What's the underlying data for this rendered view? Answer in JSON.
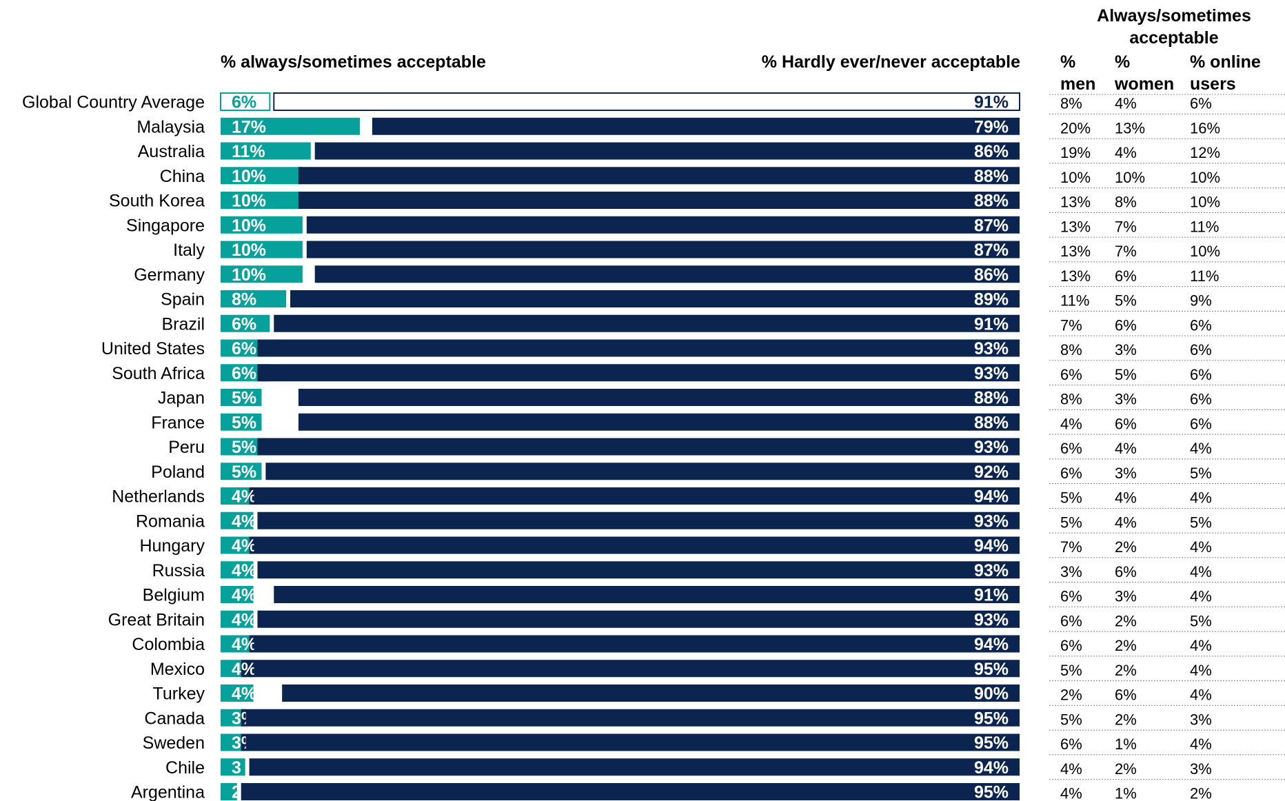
{
  "colors": {
    "acceptable": "#07a19b",
    "hardly_never": "#0c2550",
    "global_outline": "#0c2550"
  },
  "chart_data": {
    "type": "bar",
    "headers": {
      "acceptable": "% always/sometimes acceptable",
      "hardly_never": "% Hardly ever/never acceptable",
      "table_title": [
        "Always/sometimes",
        "acceptable"
      ],
      "columns": [
        [
          "%",
          "men"
        ],
        [
          "%",
          "women"
        ],
        [
          "% online",
          "users"
        ]
      ]
    },
    "categories": [
      "Global Country Average",
      "Malaysia",
      "Australia",
      "China",
      "South Korea",
      "Singapore",
      "Italy",
      "Germany",
      "Spain",
      "Brazil",
      "United States",
      "South Africa",
      "Japan",
      "France",
      "Peru",
      "Poland",
      "Netherlands",
      "Romania",
      "Hungary",
      "Russia",
      "Belgium",
      "Great Britain",
      "Colombia",
      "Mexico",
      "Turkey",
      "Canada",
      "Sweden",
      "Chile",
      "Argentina"
    ],
    "series": [
      {
        "name": "% always/sometimes acceptable",
        "values": [
          6,
          17,
          11,
          10,
          10,
          10,
          10,
          10,
          8,
          6,
          6,
          6,
          5,
          5,
          5,
          5,
          4,
          4,
          4,
          4,
          4,
          4,
          4,
          4,
          4,
          3,
          3,
          3,
          2
        ],
        "labels": [
          "6%",
          "17%",
          "11%",
          "10%",
          "10%",
          "10%",
          "10%",
          "10%",
          "8%",
          "6%",
          "6%",
          "6%",
          "5%",
          "5%",
          "5%",
          "5%",
          "4%",
          "4%",
          "4%",
          "4%",
          "4%",
          "4%",
          "4%",
          "4%",
          "4%",
          "3%",
          "3%",
          "3",
          "2"
        ]
      },
      {
        "name": "% Hardly ever/never acceptable",
        "values": [
          91,
          79,
          86,
          88,
          88,
          87,
          87,
          86,
          89,
          91,
          93,
          93,
          88,
          88,
          93,
          92,
          94,
          93,
          94,
          93,
          91,
          93,
          94,
          95,
          90,
          95,
          95,
          94,
          95
        ],
        "labels": [
          "91%",
          "79%",
          "86%",
          "88%",
          "88%",
          "87%",
          "87%",
          "86%",
          "89%",
          "91%",
          "93%",
          "93%",
          "88%",
          "88%",
          "93%",
          "92%",
          "94%",
          "93%",
          "94%",
          "93%",
          "91%",
          "93%",
          "94%",
          "95%",
          "90%",
          "95%",
          "95%",
          "94%",
          "95%"
        ]
      }
    ],
    "table": {
      "men": [
        "8%",
        "20%",
        "19%",
        "10%",
        "13%",
        "13%",
        "13%",
        "13%",
        "11%",
        "7%",
        "8%",
        "6%",
        "8%",
        "4%",
        "6%",
        "6%",
        "5%",
        "5%",
        "7%",
        "3%",
        "6%",
        "6%",
        "6%",
        "5%",
        "2%",
        "5%",
        "6%",
        "4%",
        "4%"
      ],
      "women": [
        "4%",
        "13%",
        "4%",
        "10%",
        "8%",
        "7%",
        "7%",
        "6%",
        "5%",
        "6%",
        "3%",
        "5%",
        "3%",
        "6%",
        "4%",
        "3%",
        "4%",
        "4%",
        "2%",
        "6%",
        "3%",
        "2%",
        "2%",
        "2%",
        "6%",
        "2%",
        "1%",
        "2%",
        "1%"
      ],
      "online_users": [
        "6%",
        "16%",
        "12%",
        "10%",
        "10%",
        "11%",
        "10%",
        "11%",
        "9%",
        "6%",
        "6%",
        "6%",
        "6%",
        "6%",
        "4%",
        "5%",
        "4%",
        "5%",
        "4%",
        "4%",
        "4%",
        "5%",
        "4%",
        "4%",
        "4%",
        "3%",
        "4%",
        "3%",
        "2%"
      ]
    }
  }
}
